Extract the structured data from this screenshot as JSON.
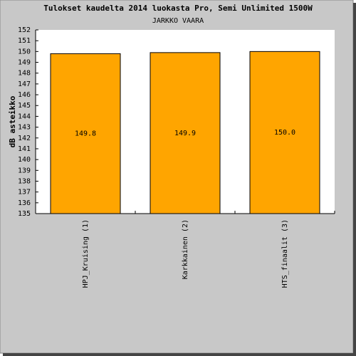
{
  "chart_data": {
    "type": "bar",
    "title": "Tulokset kaudelta 2014 luokasta Pro, Semi Unlimited 1500W",
    "subtitle": "JARKKO VAARA",
    "y_label": "dB asteikko",
    "categories": [
      "HPJ_Kruising (1)",
      "Karkkainen (2)",
      "HTS_finaalit (3)"
    ],
    "values": [
      149.8,
      149.9,
      150
    ],
    "value_labels": [
      "149.8",
      "149.9",
      "150.0"
    ],
    "color": "#ffa500",
    "ylim": [
      135,
      152
    ],
    "yticks": [
      135,
      136,
      137,
      138,
      139,
      140,
      141,
      142,
      143,
      144,
      145,
      146,
      147,
      148,
      149,
      150,
      151,
      152
    ],
    "grid": false
  }
}
